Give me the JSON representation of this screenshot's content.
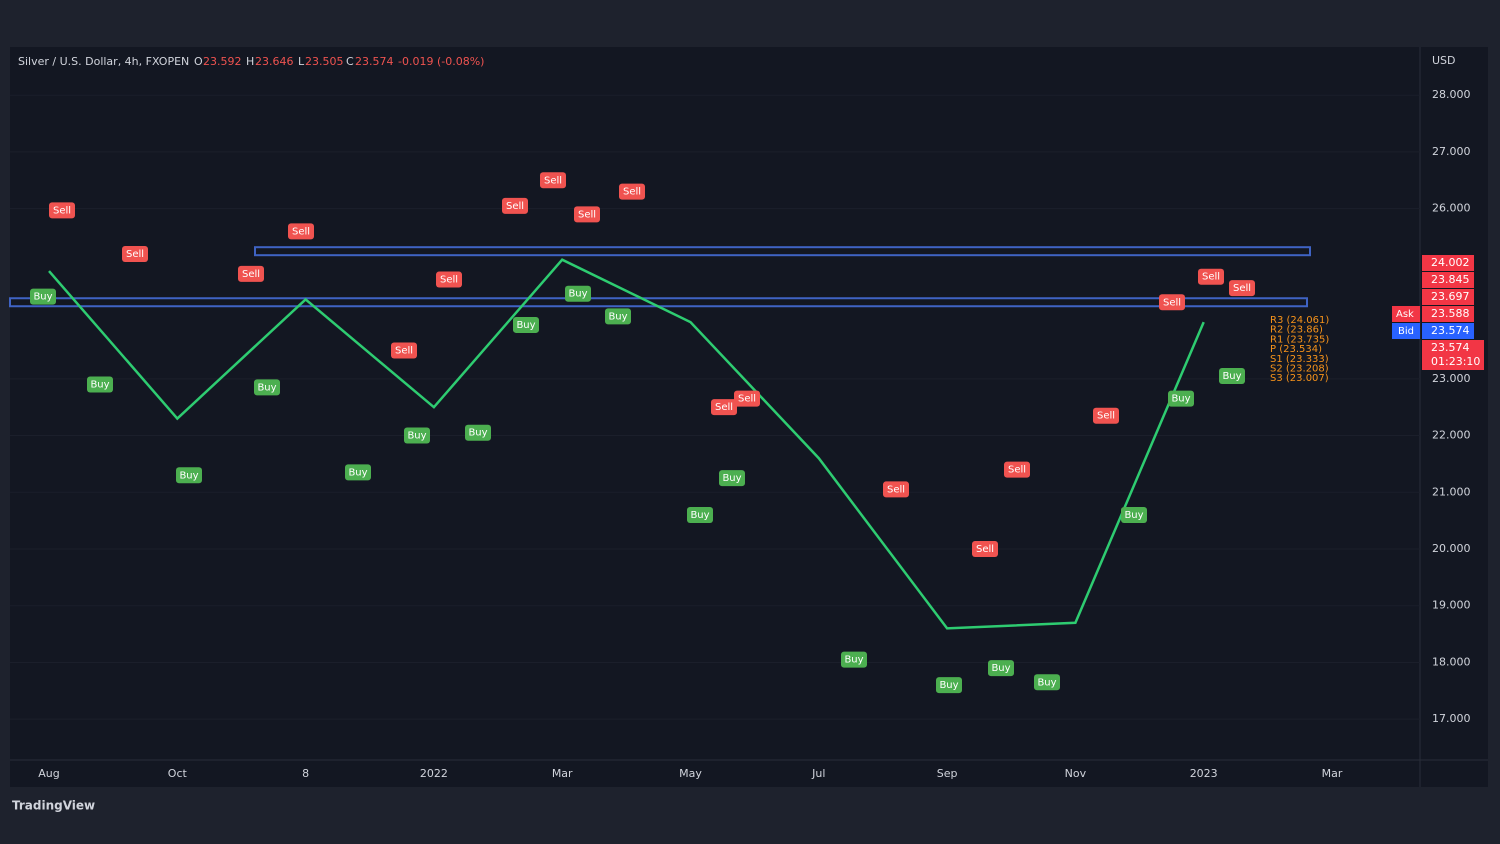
{
  "header": {
    "symbol": "Silver / U.S. Dollar, 4h, FXOPEN",
    "o_label": "O",
    "o": "23.592",
    "h_label": "H",
    "h": "23.646",
    "l_label": "L",
    "l": "23.505",
    "c_label": "C",
    "c": "23.574",
    "change": "-0.019 (-0.08%)",
    "currency": "USD"
  },
  "chart_data": {
    "type": "line",
    "categories": [
      "Aug",
      "Oct",
      "8",
      "2022",
      "Mar",
      "May",
      "Jul",
      "Sep",
      "Nov",
      "2023",
      "Mar"
    ],
    "series": [
      {
        "name": "Silver",
        "color": "#2ecc71",
        "values": [
          24.9,
          22.3,
          24.4,
          22.5,
          25.1,
          24.0,
          21.6,
          18.6,
          18.7,
          24.0,
          null
        ]
      }
    ],
    "ylim": [
      16.28,
      28.85
    ],
    "yticks": [
      {
        "value": 17,
        "label": "17.000"
      },
      {
        "value": 18,
        "label": "18.000"
      },
      {
        "value": 19,
        "label": "19.000"
      },
      {
        "value": 20,
        "label": "20.000"
      },
      {
        "value": 21,
        "label": "21.000"
      },
      {
        "value": 22,
        "label": "22.000"
      },
      {
        "value": 23,
        "label": "23.000"
      },
      {
        "value": 26,
        "label": "26.000"
      },
      {
        "value": 27,
        "label": "27.000"
      },
      {
        "value": 28,
        "label": "28.000"
      }
    ],
    "levels": [
      25.25,
      24.35
    ],
    "level_color": "#3f63c4",
    "signals": [
      {
        "text": "Sell",
        "value": 25.97
      },
      {
        "text": "Buy",
        "value": 24.45
      },
      {
        "text": "Sell",
        "value": 25.2
      },
      {
        "text": "Buy",
        "value": 22.9
      },
      {
        "text": "Buy",
        "value": 21.3
      },
      {
        "text": "Sell",
        "value": 24.85
      },
      {
        "text": "Buy",
        "value": 22.85
      },
      {
        "text": "Sell",
        "value": 25.6
      },
      {
        "text": "Buy",
        "value": 21.35
      },
      {
        "text": "Sell",
        "value": 23.5
      },
      {
        "text": "Buy",
        "value": 22.0
      },
      {
        "text": "Sell",
        "value": 24.75
      },
      {
        "text": "Buy",
        "value": 22.05
      },
      {
        "text": "Sell",
        "value": 26.05
      },
      {
        "text": "Buy",
        "value": 23.95
      },
      {
        "text": "Sell",
        "value": 26.5
      },
      {
        "text": "Sell",
        "value": 25.9
      },
      {
        "text": "Buy",
        "value": 24.5
      },
      {
        "text": "Sell",
        "value": 26.3
      },
      {
        "text": "Buy",
        "value": 24.1
      },
      {
        "text": "Sell",
        "value": 22.5
      },
      {
        "text": "Sell",
        "value": 22.65
      },
      {
        "text": "Buy",
        "value": 21.25
      },
      {
        "text": "Buy",
        "value": 20.6
      },
      {
        "text": "Sell",
        "value": 21.05
      },
      {
        "text": "Buy",
        "value": 18.05
      },
      {
        "text": "Sell",
        "value": 20.0
      },
      {
        "text": "Buy",
        "value": 17.6
      },
      {
        "text": "Sell",
        "value": 21.4
      },
      {
        "text": "Buy",
        "value": 17.9
      },
      {
        "text": "Buy",
        "value": 17.65
      },
      {
        "text": "Sell",
        "value": 22.35
      },
      {
        "text": "Buy",
        "value": 20.6
      },
      {
        "text": "Sell",
        "value": 24.35
      },
      {
        "text": "Buy",
        "value": 22.65
      },
      {
        "text": "Sell",
        "value": 24.8
      },
      {
        "text": "Sell",
        "value": 24.6
      },
      {
        "text": "Buy",
        "value": 23.05
      }
    ],
    "price_tags": [
      "24.002",
      "23.845",
      "23.697",
      "23.588",
      "23.574",
      "23.574",
      "01:23:10"
    ],
    "ask_label": "Ask",
    "bid_label": "Bid",
    "pivots": [
      "R3 (24.061)",
      "R2 (23.86)",
      "R1 (23.735)",
      "P (23.534)",
      "S1 (23.333)",
      "S2 (23.208)",
      "S3 (23.007)"
    ]
  },
  "footer": {
    "brand": "TradingView"
  }
}
